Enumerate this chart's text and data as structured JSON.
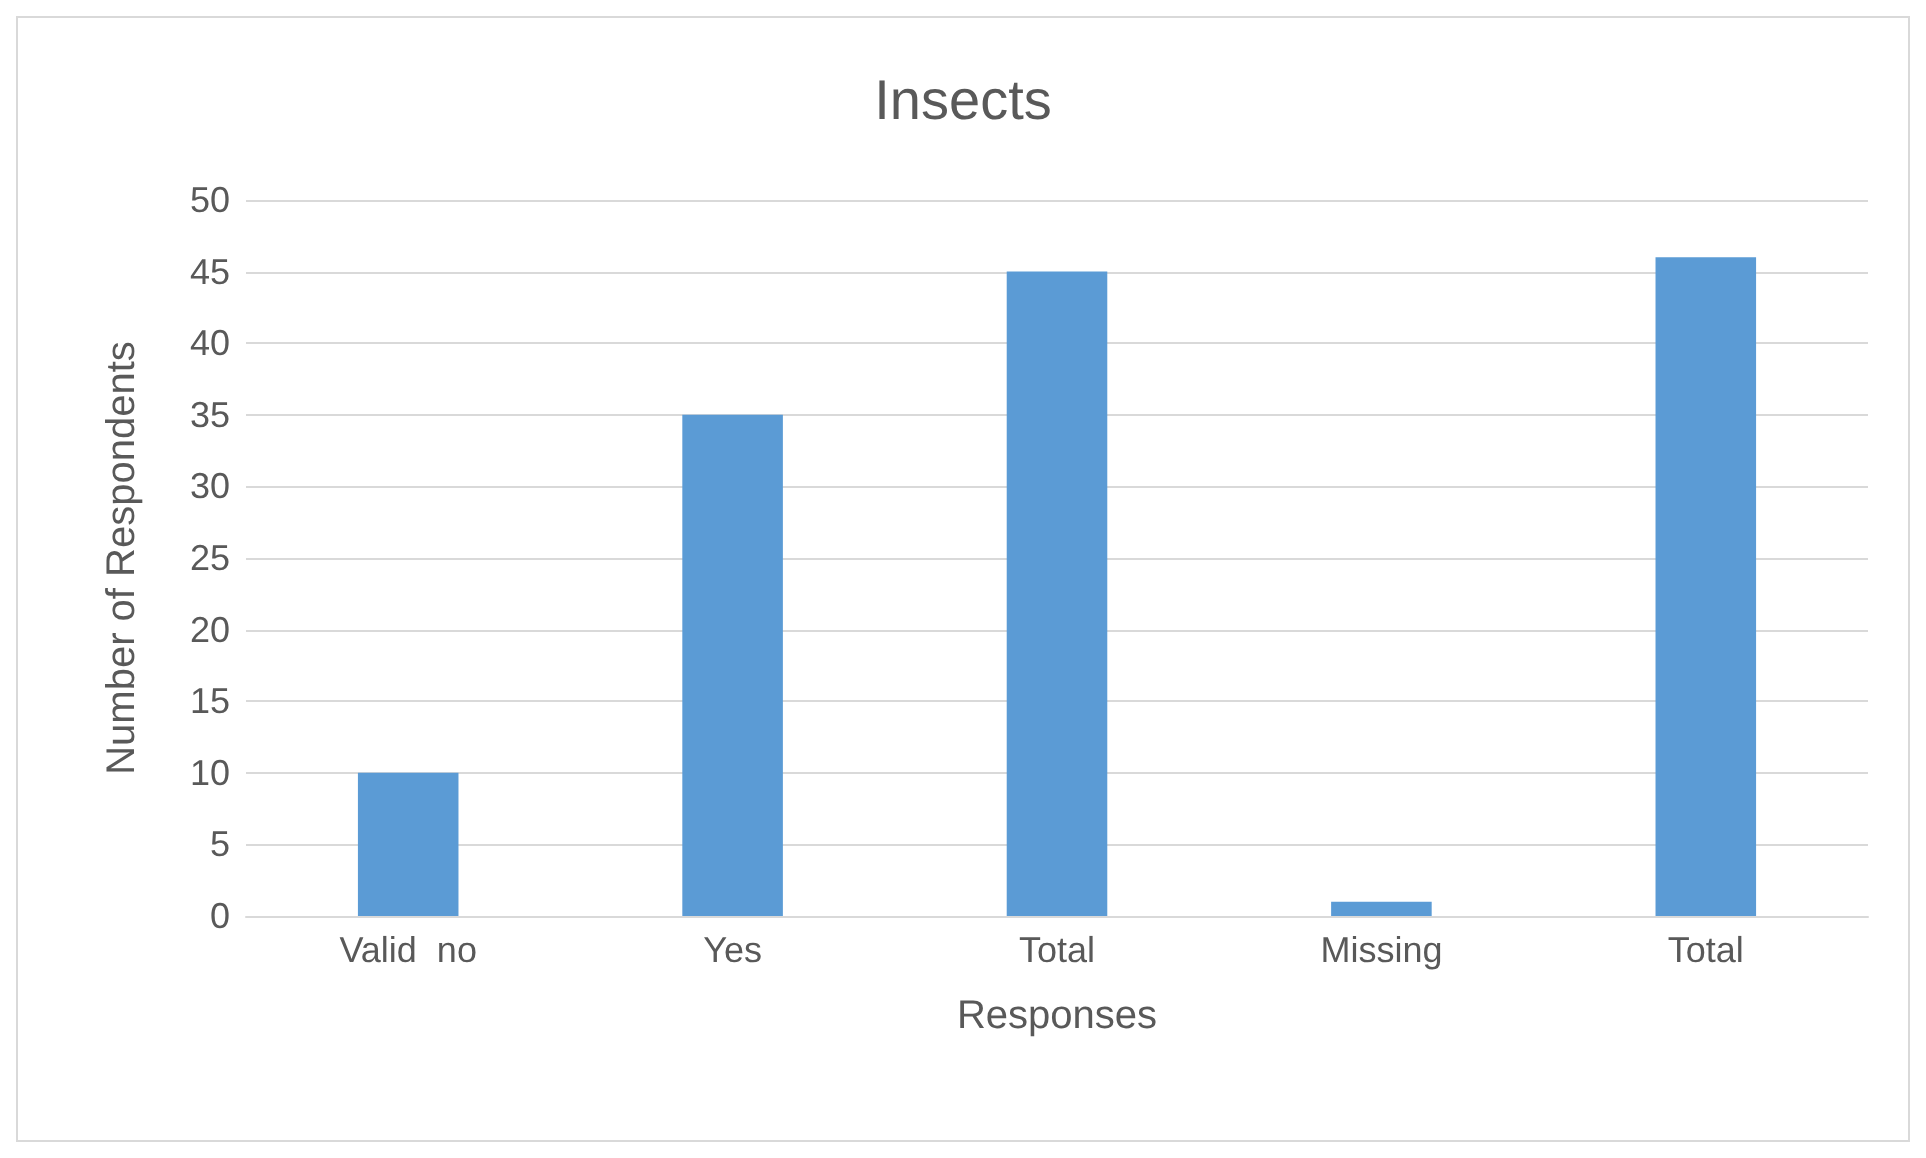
{
  "chart_data": {
    "type": "bar",
    "title": "Insects",
    "xlabel": "Responses",
    "ylabel": "Number of Respondents",
    "categories": [
      "Valid  no",
      "Yes",
      "Total",
      "Missing",
      "Total"
    ],
    "values": [
      10,
      35,
      45,
      1,
      46
    ],
    "color": "#5b9bd5",
    "ylim": [
      0,
      50
    ],
    "yticks": [
      0,
      5,
      10,
      15,
      20,
      25,
      30,
      35,
      40,
      45,
      50
    ],
    "grid": "y"
  }
}
